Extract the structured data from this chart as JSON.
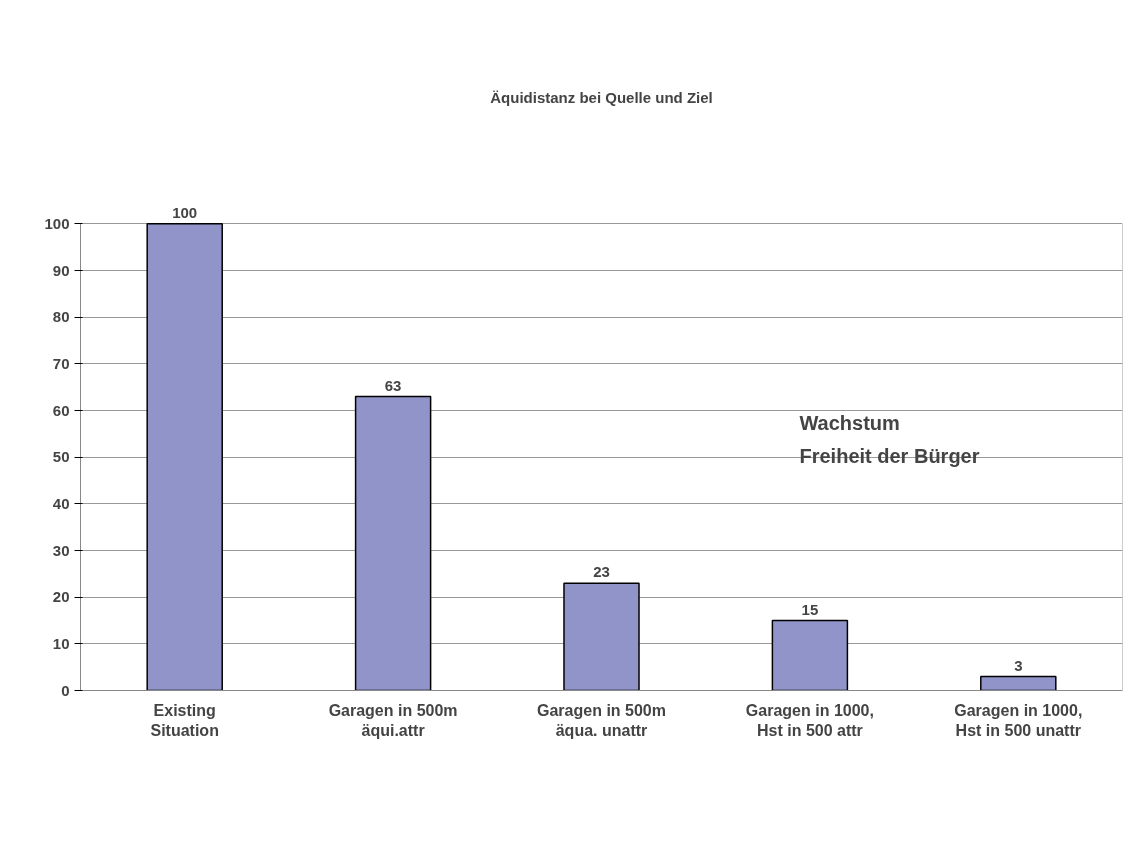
{
  "chart_data": {
    "type": "bar",
    "title": "Äquidistanz bei Quelle und Ziel",
    "categories": [
      "Existing\nSituation",
      "Garagen in 500m\näqui.attr",
      "Garagen in 500m\näqua. unattr",
      "Garagen in 1000,\nHst in 500 attr",
      "Garagen in 1000,\nHst in 500 unattr"
    ],
    "values": [
      100,
      63,
      23,
      15,
      3
    ],
    "color": "#9094c8",
    "data_labels": true,
    "ylim": [
      0,
      100
    ],
    "yticks": [
      0,
      10,
      20,
      30,
      40,
      50,
      60,
      70,
      80,
      90,
      100
    ],
    "grid": "y",
    "annotations": [
      "Wachstum\nFreiheit der Bürger"
    ]
  }
}
